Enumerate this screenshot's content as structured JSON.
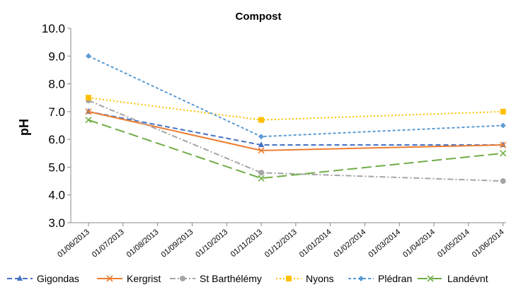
{
  "chart_data": {
    "type": "line",
    "title": "Compost",
    "xlabel": "",
    "ylabel": "pH",
    "ylim": [
      3.0,
      10.0
    ],
    "y_ticks": [
      "3.0",
      "4.0",
      "5.0",
      "6.0",
      "7.0",
      "8.0",
      "9.0",
      "10.0"
    ],
    "x_ticks": [
      "01/06/2013",
      "01/07/2013",
      "01/08/2013",
      "01/09/2013",
      "01/10/2013",
      "01/11/2013",
      "01/12/2013",
      "01/01/2014",
      "01/02/2014",
      "01/03/2014",
      "01/04/2014",
      "01/05/2014",
      "01/06/2014"
    ],
    "grid": false,
    "legend_position": "bottom",
    "series": [
      {
        "name": "Gigondas",
        "color": "#4472C4",
        "dash": "dashed",
        "marker": "triangle",
        "points": [
          [
            "01/06/2013",
            7.0
          ],
          [
            "01/11/2013",
            5.8
          ],
          [
            "01/06/2014",
            5.8
          ]
        ]
      },
      {
        "name": "Kergrist",
        "color": "#ED7D31",
        "dash": "solid",
        "marker": "x",
        "points": [
          [
            "01/06/2013",
            7.0
          ],
          [
            "01/11/2013",
            5.6
          ],
          [
            "01/06/2014",
            5.8
          ]
        ]
      },
      {
        "name": "St Barthélémy",
        "color": "#A5A5A5",
        "dash": "dashdot",
        "marker": "circle",
        "points": [
          [
            "01/06/2013",
            7.4
          ],
          [
            "01/11/2013",
            4.8
          ],
          [
            "01/06/2014",
            4.5
          ]
        ]
      },
      {
        "name": "Nyons",
        "color": "#FFC000",
        "dash": "dotted",
        "marker": "square",
        "points": [
          [
            "01/06/2013",
            7.5
          ],
          [
            "01/11/2013",
            6.7
          ],
          [
            "01/06/2014",
            7.0
          ]
        ]
      },
      {
        "name": "Plédran",
        "color": "#5B9BD5",
        "dash": "shortdash",
        "marker": "diamond",
        "points": [
          [
            "01/06/2013",
            9.0
          ],
          [
            "01/11/2013",
            6.1
          ],
          [
            "01/06/2014",
            6.5
          ]
        ]
      },
      {
        "name": "Landévnt",
        "color": "#70AD47",
        "dash": "longdash",
        "marker": "x",
        "points": [
          [
            "01/06/2013",
            6.7
          ],
          [
            "01/11/2013",
            4.6
          ],
          [
            "01/06/2014",
            5.5
          ]
        ]
      }
    ]
  }
}
